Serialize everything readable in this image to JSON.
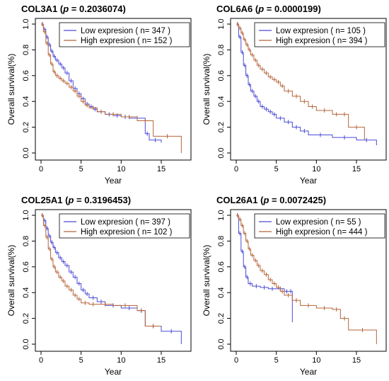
{
  "chart_data": [
    {
      "type": "line",
      "gene": "COL3A1",
      "p_label": "p",
      "p_value": "= 0.2036074",
      "xlabel": "Year",
      "ylabel": "Overall survival(%)",
      "xlim": [
        0,
        18
      ],
      "ylim": [
        0,
        1
      ],
      "x_ticks": [
        "0",
        "5",
        "10",
        "15"
      ],
      "y_ticks": [
        "0.0",
        "0.2",
        "0.4",
        "0.6",
        "0.8",
        "1.0"
      ],
      "legend_position": "top-right",
      "series": [
        {
          "name": "Low expresion ( n= 347 )",
          "color": "#4b4bd6",
          "x": [
            0,
            0.3,
            0.6,
            0.9,
            1.2,
            1.5,
            1.8,
            2.2,
            2.6,
            3.0,
            3.5,
            4.0,
            4.5,
            5.0,
            5.5,
            6.0,
            6.5,
            7.0,
            8.0,
            9.0,
            10.0,
            11.0,
            13.0,
            13.5,
            15.0
          ],
          "y": [
            1.0,
            0.96,
            0.9,
            0.84,
            0.79,
            0.75,
            0.72,
            0.69,
            0.66,
            0.62,
            0.56,
            0.5,
            0.46,
            0.42,
            0.38,
            0.36,
            0.34,
            0.32,
            0.3,
            0.29,
            0.28,
            0.27,
            0.15,
            0.1,
            0.08
          ]
        },
        {
          "name": "High expresion ( n= 152 )",
          "color": "#b5653a",
          "x": [
            0,
            0.3,
            0.6,
            0.9,
            1.2,
            1.5,
            1.8,
            2.2,
            2.6,
            3.0,
            3.5,
            4.0,
            4.5,
            5.0,
            5.5,
            6.0,
            7.0,
            8.0,
            10.0,
            12.0,
            14.0,
            17.5
          ],
          "y": [
            1.0,
            0.94,
            0.85,
            0.76,
            0.69,
            0.63,
            0.6,
            0.58,
            0.56,
            0.54,
            0.51,
            0.48,
            0.44,
            0.4,
            0.37,
            0.35,
            0.32,
            0.3,
            0.28,
            0.25,
            0.13,
            0.0
          ]
        }
      ]
    },
    {
      "type": "line",
      "gene": "COL6A6",
      "p_label": "p",
      "p_value": "= 0.0000199",
      "xlabel": "Year",
      "ylabel": "Overall survival(%)",
      "xlim": [
        0,
        18
      ],
      "ylim": [
        0,
        1
      ],
      "x_ticks": [
        "0",
        "5",
        "10",
        "15"
      ],
      "y_ticks": [
        "0.0",
        "0.2",
        "0.4",
        "0.6",
        "0.8",
        "1.0"
      ],
      "legend_position": "top-right",
      "series": [
        {
          "name": "Low expresion ( n= 105 )",
          "color": "#4b4bd6",
          "x": [
            0,
            0.3,
            0.6,
            0.9,
            1.2,
            1.5,
            1.8,
            2.2,
            2.6,
            3.0,
            3.5,
            4.0,
            4.5,
            5.0,
            6.0,
            7.0,
            8.0,
            9.0,
            12.0,
            15.0,
            17.5
          ],
          "y": [
            1.0,
            0.9,
            0.78,
            0.68,
            0.6,
            0.53,
            0.48,
            0.44,
            0.4,
            0.36,
            0.34,
            0.32,
            0.3,
            0.27,
            0.24,
            0.2,
            0.17,
            0.14,
            0.12,
            0.1,
            0.06
          ]
        },
        {
          "name": "High expresion ( n= 394 )",
          "color": "#b5653a",
          "x": [
            0,
            0.3,
            0.6,
            0.9,
            1.2,
            1.5,
            1.8,
            2.2,
            2.6,
            3.0,
            3.5,
            4.0,
            4.5,
            5.0,
            5.5,
            6.0,
            7.0,
            8.0,
            9.0,
            10.0,
            12.0,
            13.0,
            14.0,
            16.0
          ],
          "y": [
            1.0,
            0.97,
            0.93,
            0.88,
            0.84,
            0.8,
            0.76,
            0.72,
            0.68,
            0.65,
            0.62,
            0.59,
            0.57,
            0.55,
            0.52,
            0.48,
            0.44,
            0.4,
            0.36,
            0.33,
            0.3,
            0.3,
            0.2,
            0.1
          ]
        }
      ]
    },
    {
      "type": "line",
      "gene": "COL25A1",
      "p_label": "p",
      "p_value": "= 0.3196453",
      "xlabel": "Year",
      "ylabel": "Overall survival(%)",
      "xlim": [
        0,
        18
      ],
      "ylim": [
        0,
        1
      ],
      "x_ticks": [
        "0",
        "5",
        "10",
        "15"
      ],
      "y_ticks": [
        "0.0",
        "0.2",
        "0.4",
        "0.6",
        "0.8",
        "1.0"
      ],
      "legend_position": "top-right",
      "series": [
        {
          "name": "Low expresion ( n= 397 )",
          "color": "#4b4bd6",
          "x": [
            0,
            0.3,
            0.6,
            0.9,
            1.2,
            1.5,
            1.8,
            2.2,
            2.6,
            3.0,
            3.5,
            4.0,
            4.5,
            5.0,
            5.5,
            6.0,
            7.0,
            8.0,
            10.0,
            12.0,
            13.0,
            15.0,
            17.5
          ],
          "y": [
            1.0,
            0.96,
            0.9,
            0.84,
            0.79,
            0.75,
            0.71,
            0.67,
            0.64,
            0.61,
            0.56,
            0.52,
            0.47,
            0.42,
            0.39,
            0.36,
            0.33,
            0.3,
            0.28,
            0.26,
            0.14,
            0.1,
            0.0
          ]
        },
        {
          "name": "High expresion ( n= 102 )",
          "color": "#b5653a",
          "x": [
            0,
            0.3,
            0.6,
            0.9,
            1.2,
            1.5,
            1.8,
            2.2,
            2.6,
            3.0,
            3.5,
            4.0,
            4.5,
            5.0,
            6.0,
            7.0,
            9.0,
            12.0,
            13.0,
            15.0
          ],
          "y": [
            1.0,
            0.92,
            0.83,
            0.74,
            0.66,
            0.6,
            0.56,
            0.52,
            0.49,
            0.45,
            0.42,
            0.38,
            0.35,
            0.32,
            0.31,
            0.31,
            0.3,
            0.26,
            0.14,
            0.14
          ]
        }
      ]
    },
    {
      "type": "line",
      "gene": "COL26A1",
      "p_label": "p",
      "p_value": "= 0.0072425",
      "xlabel": "Year",
      "ylabel": "Overall survival(%)",
      "xlim": [
        0,
        18
      ],
      "ylim": [
        0,
        1
      ],
      "x_ticks": [
        "0",
        "5",
        "10",
        "15"
      ],
      "y_ticks": [
        "0.0",
        "0.2",
        "0.4",
        "0.6",
        "0.8",
        "1.0"
      ],
      "legend_position": "top-right",
      "series": [
        {
          "name": "Low expresion ( n= 55 )",
          "color": "#4b4bd6",
          "x": [
            0,
            0.3,
            0.6,
            0.9,
            1.2,
            1.5,
            2.0,
            3.0,
            4.0,
            5.0,
            6.0,
            6.6,
            7.0
          ],
          "y": [
            1.0,
            0.86,
            0.72,
            0.6,
            0.52,
            0.47,
            0.45,
            0.44,
            0.43,
            0.43,
            0.41,
            0.41,
            0.17
          ]
        },
        {
          "name": "High expresion ( n= 444 )",
          "color": "#b5653a",
          "x": [
            0,
            0.3,
            0.6,
            0.9,
            1.2,
            1.5,
            1.8,
            2.2,
            2.6,
            3.0,
            3.5,
            4.0,
            4.5,
            5.0,
            5.5,
            6.0,
            7.0,
            8.0,
            10.0,
            12.0,
            13.0,
            14.0,
            17.5
          ],
          "y": [
            1.0,
            0.97,
            0.92,
            0.86,
            0.8,
            0.74,
            0.69,
            0.65,
            0.61,
            0.57,
            0.54,
            0.5,
            0.47,
            0.44,
            0.41,
            0.38,
            0.34,
            0.3,
            0.28,
            0.27,
            0.2,
            0.11,
            0.0
          ]
        }
      ]
    }
  ]
}
